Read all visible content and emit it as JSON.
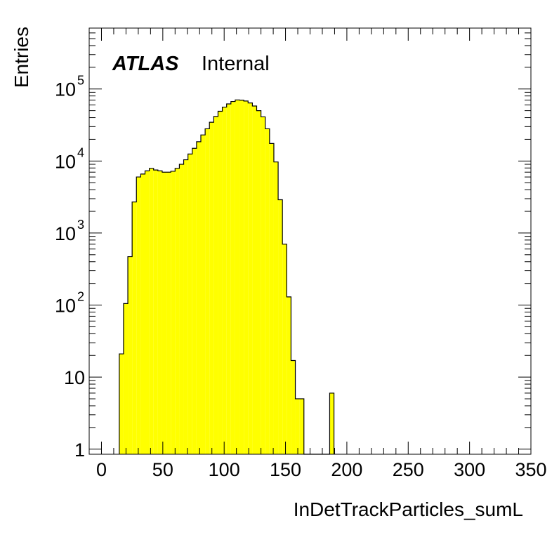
{
  "chart_data": {
    "type": "histogram",
    "title": "",
    "label_brand": "ATLAS",
    "label_status": "Internal",
    "xlabel": "InDetTrackParticles_sumL",
    "ylabel": "Entries",
    "xlim": [
      -10,
      350
    ],
    "ylim": [
      0.85,
      700000
    ],
    "log_y": true,
    "x_tick_labels": [
      "0",
      "50",
      "100",
      "150",
      "200",
      "250",
      "300",
      "350"
    ],
    "y_tick_labels": [
      {
        "base": "1",
        "exp": ""
      },
      {
        "base": "10",
        "exp": ""
      },
      {
        "base": "10",
        "exp": "2"
      },
      {
        "base": "10",
        "exp": "3"
      },
      {
        "base": "10",
        "exp": "4"
      },
      {
        "base": "10",
        "exp": "5"
      }
    ],
    "fill_color": "#ffff00",
    "line_color": "#000000",
    "bin_width": 3.5,
    "bins": [
      [
        14.5,
        21
      ],
      [
        18.0,
        105
      ],
      [
        21.5,
        470
      ],
      [
        25.0,
        2700
      ],
      [
        28.5,
        6000
      ],
      [
        32.0,
        6600
      ],
      [
        35.5,
        7300
      ],
      [
        39.0,
        7900
      ],
      [
        42.5,
        7500
      ],
      [
        46.0,
        7300
      ],
      [
        49.5,
        7000
      ],
      [
        53.0,
        7000
      ],
      [
        56.5,
        7200
      ],
      [
        60.0,
        7900
      ],
      [
        63.5,
        9000
      ],
      [
        67.0,
        10400
      ],
      [
        70.5,
        12500
      ],
      [
        74.0,
        15000
      ],
      [
        77.5,
        18500
      ],
      [
        81.0,
        23000
      ],
      [
        84.5,
        28000
      ],
      [
        88.0,
        34500
      ],
      [
        91.5,
        41500
      ],
      [
        95.0,
        49000
      ],
      [
        98.5,
        56000
      ],
      [
        102.0,
        62000
      ],
      [
        105.5,
        67000
      ],
      [
        109.0,
        70500
      ],
      [
        112.5,
        70000
      ],
      [
        116.0,
        68000
      ],
      [
        119.5,
        64000
      ],
      [
        123.0,
        58000
      ],
      [
        126.5,
        50000
      ],
      [
        130.0,
        41000
      ],
      [
        133.5,
        28000
      ],
      [
        137.0,
        17500
      ],
      [
        140.5,
        9700
      ],
      [
        144.0,
        2900
      ],
      [
        147.5,
        700
      ],
      [
        151.0,
        130
      ],
      [
        154.5,
        17
      ],
      [
        158.0,
        5
      ],
      [
        161.5,
        5
      ],
      [
        165.0,
        0
      ],
      [
        168.5,
        0
      ],
      [
        172.0,
        0
      ],
      [
        175.5,
        0
      ],
      [
        179.0,
        0
      ],
      [
        182.5,
        0
      ],
      [
        186.0,
        6
      ]
    ]
  }
}
